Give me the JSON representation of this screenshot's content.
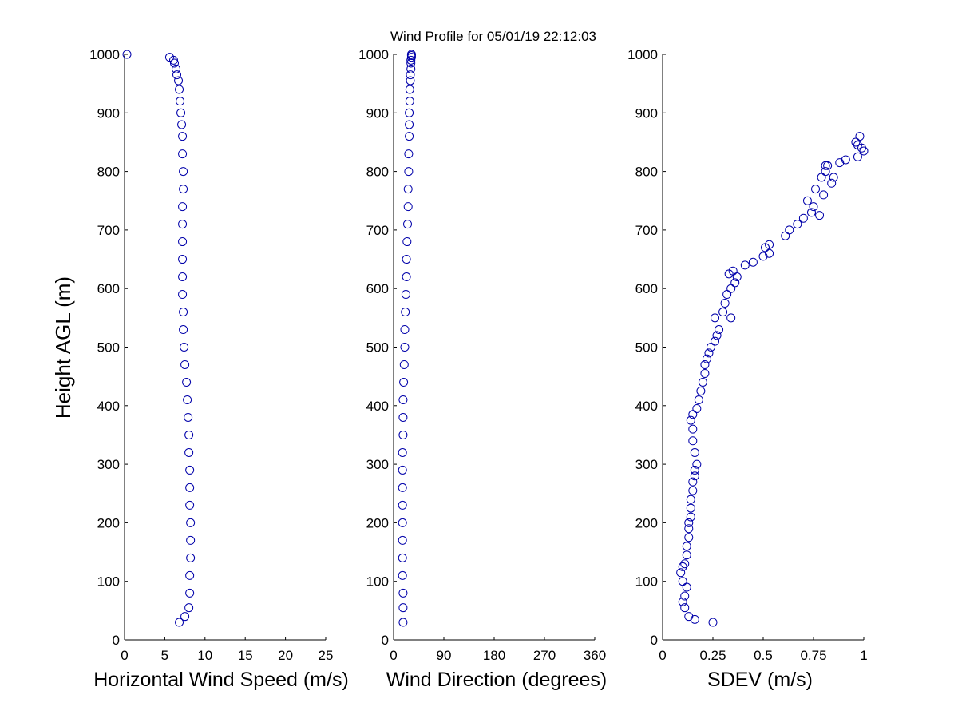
{
  "chart_data": {
    "title": "Wind Profile for  05/01/19 22:12:03",
    "ylabel": "Height AGL (m)",
    "marker_color": "#0000aa",
    "subplots": [
      {
        "type": "scatter",
        "xlabel": "Horizontal Wind Speed (m/s)",
        "xlim": [
          0,
          25
        ],
        "ylim": [
          0,
          1000
        ],
        "xticks": [
          0,
          5,
          10,
          15,
          20,
          25
        ],
        "xtick_labels": [
          "0",
          "5",
          "10",
          "15",
          "20",
          "25"
        ],
        "yticks": [
          0,
          100,
          200,
          300,
          400,
          500,
          600,
          700,
          800,
          900,
          1000
        ],
        "series": [
          {
            "x": [
              6.8,
              7.5,
              8.0,
              8.1,
              8.1,
              8.2,
              8.2,
              8.2,
              8.1,
              8.1,
              8.1,
              8.0,
              8.0,
              7.9,
              7.8,
              7.7,
              7.5,
              7.4,
              7.3,
              7.3,
              7.2,
              7.2,
              7.2,
              7.2,
              7.2,
              7.2,
              7.3,
              7.3,
              7.2,
              7.2,
              7.1,
              7.0,
              6.9,
              6.8,
              6.7,
              6.5,
              6.4,
              6.2,
              6.1,
              5.6,
              0.3
            ],
            "y": [
              30,
              40,
              55,
              80,
              110,
              140,
              170,
              200,
              230,
              260,
              290,
              320,
              350,
              380,
              410,
              440,
              470,
              500,
              530,
              560,
              590,
              620,
              650,
              680,
              710,
              740,
              770,
              800,
              830,
              860,
              880,
              900,
              920,
              940,
              955,
              965,
              975,
              985,
              990,
              995,
              1000
            ]
          }
        ]
      },
      {
        "type": "scatter",
        "xlabel": "Wind Direction (degrees)",
        "xlim": [
          0,
          360
        ],
        "ylim": [
          0,
          1000
        ],
        "xticks": [
          0,
          90,
          180,
          270,
          360
        ],
        "xtick_labels": [
          "0",
          "90",
          "180",
          "270",
          "360"
        ],
        "yticks": [
          0,
          100,
          200,
          300,
          400,
          500,
          600,
          700,
          800,
          900,
          1000
        ],
        "series": [
          {
            "x": [
              17,
              17,
              17,
              16,
              16,
              16,
              16,
              16,
              16,
              16,
              16,
              17,
              17,
              17,
              18,
              19,
              20,
              20,
              21,
              22,
              23,
              23,
              24,
              25,
              26,
              26,
              27,
              27,
              28,
              28,
              28,
              29,
              29,
              30,
              30,
              31,
              31,
              31,
              32,
              32,
              32
            ],
            "y": [
              30,
              55,
              80,
              110,
              140,
              170,
              200,
              230,
              260,
              290,
              320,
              350,
              380,
              410,
              440,
              470,
              500,
              530,
              560,
              590,
              620,
              650,
              680,
              710,
              740,
              770,
              800,
              830,
              860,
              880,
              900,
              920,
              940,
              955,
              965,
              975,
              985,
              990,
              995,
              998,
              1000
            ]
          }
        ]
      },
      {
        "type": "scatter",
        "xlabel": "SDEV  (m/s)",
        "xlim": [
          0,
          1
        ],
        "ylim": [
          0,
          1000
        ],
        "xticks": [
          0,
          0.25,
          0.5,
          0.75,
          1
        ],
        "xtick_labels": [
          "0",
          "0.25",
          "0.5",
          "0.75",
          "1"
        ],
        "yticks": [
          0,
          100,
          200,
          300,
          400,
          500,
          600,
          700,
          800,
          900,
          1000
        ],
        "series": [
          {
            "x": [
              0.25,
              0.16,
              0.13,
              0.11,
              0.1,
              0.11,
              0.12,
              0.1,
              0.09,
              0.1,
              0.11,
              0.12,
              0.12,
              0.13,
              0.13,
              0.13,
              0.14,
              0.14,
              0.14,
              0.15,
              0.15,
              0.16,
              0.16,
              0.17,
              0.16,
              0.15,
              0.15,
              0.14,
              0.15,
              0.17,
              0.18,
              0.19,
              0.2,
              0.21,
              0.21,
              0.22,
              0.23,
              0.24,
              0.26,
              0.27,
              0.28,
              0.26,
              0.3,
              0.34,
              0.31,
              0.32,
              0.34,
              0.36,
              0.37,
              0.35,
              0.33,
              0.41,
              0.45,
              0.5,
              0.53,
              0.51,
              0.53,
              0.61,
              0.63,
              0.67,
              0.7,
              0.75,
              0.74,
              0.72,
              0.78,
              0.8,
              0.76,
              0.79,
              0.81,
              0.84,
              0.85,
              0.82,
              0.81,
              0.88,
              0.91,
              0.97,
              0.99,
              1.0,
              0.97,
              0.96,
              0.98
            ],
            "y": [
              30,
              35,
              40,
              55,
              65,
              75,
              90,
              100,
              115,
              125,
              130,
              145,
              160,
              175,
              190,
              200,
              210,
              225,
              240,
              255,
              270,
              280,
              290,
              300,
              320,
              340,
              360,
              375,
              385,
              395,
              410,
              425,
              440,
              455,
              470,
              480,
              490,
              500,
              510,
              520,
              530,
              550,
              560,
              550,
              575,
              590,
              600,
              610,
              620,
              630,
              625,
              640,
              645,
              655,
              660,
              670,
              675,
              690,
              700,
              710,
              720,
              740,
              730,
              750,
              725,
              760,
              770,
              790,
              800,
              780,
              790,
              810,
              810,
              815,
              820,
              825,
              840,
              835,
              845,
              850,
              860
            ]
          }
        ]
      }
    ]
  }
}
